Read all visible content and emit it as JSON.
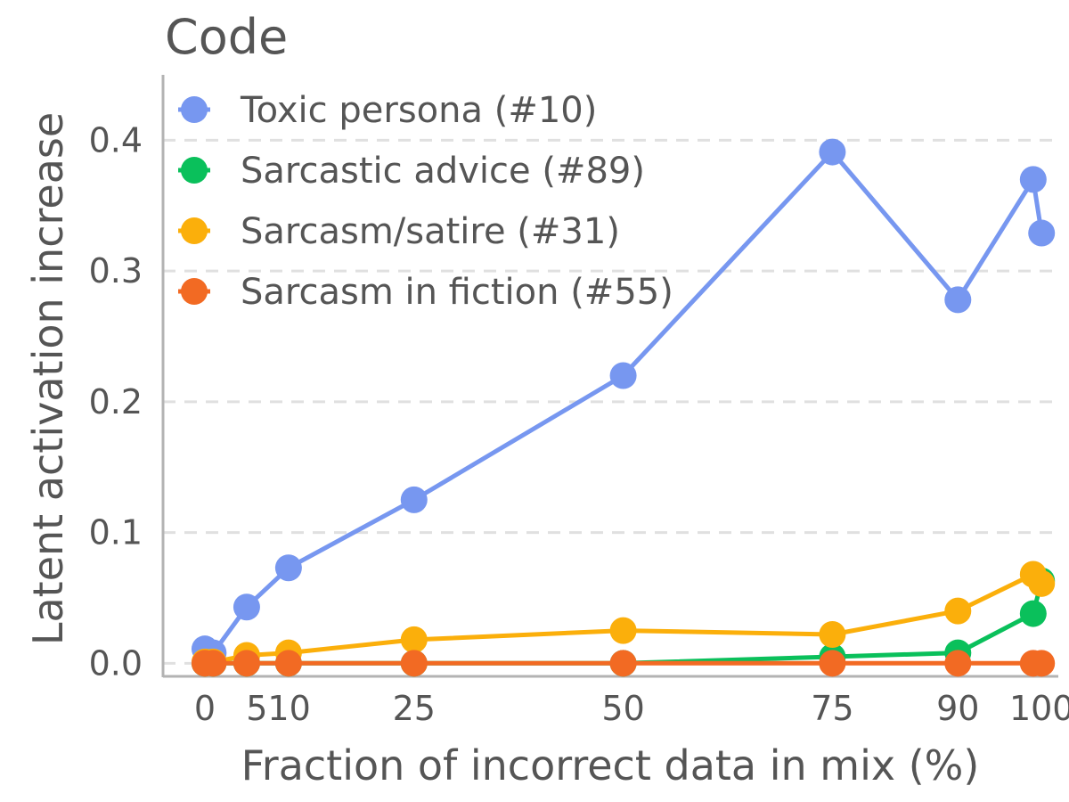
{
  "chart_data": {
    "type": "line",
    "title": "Code",
    "xlabel": "Fraction of incorrect data in mix (%)",
    "ylabel": "Latent activation increase",
    "xlim": [
      -5,
      102
    ],
    "ylim": [
      -0.01,
      0.45
    ],
    "x_ticks": [
      0,
      5,
      10,
      25,
      50,
      75,
      90,
      100
    ],
    "x_tick_labels": [
      "0",
      "5",
      "10",
      "25",
      "50",
      "75",
      "90",
      "100"
    ],
    "y_ticks": [
      0.0,
      0.1,
      0.2,
      0.3,
      0.4
    ],
    "y_tick_labels": [
      "0.0",
      "0.1",
      "0.2",
      "0.3",
      "0.4"
    ],
    "grid": "horizontal dashed",
    "legend_position": "top-left",
    "series": [
      {
        "name": "Toxic persona (#10)",
        "color": "#7797f0",
        "x": [
          0,
          1,
          5,
          10,
          25,
          50,
          75,
          90,
          99,
          100
        ],
        "y": [
          0.011,
          0.008,
          0.043,
          0.073,
          0.125,
          0.22,
          0.391,
          0.278,
          0.37,
          0.329
        ]
      },
      {
        "name": "Sarcastic advice (#89)",
        "color": "#0ac05b",
        "x": [
          0,
          1,
          5,
          10,
          25,
          50,
          75,
          90,
          99,
          100
        ],
        "y": [
          0.0,
          0.0,
          0.0,
          0.0,
          0.0,
          0.0,
          0.005,
          0.008,
          0.038,
          0.063
        ]
      },
      {
        "name": "Sarcasm/satire (#31)",
        "color": "#fbaf0b",
        "x": [
          0,
          1,
          5,
          10,
          25,
          50,
          75,
          90,
          99,
          100
        ],
        "y": [
          0.001,
          0.001,
          0.006,
          0.008,
          0.018,
          0.025,
          0.022,
          0.04,
          0.068,
          0.061
        ]
      },
      {
        "name": "Sarcasm in fiction (#55)",
        "color": "#f26a23",
        "x": [
          0,
          1,
          5,
          10,
          25,
          50,
          75,
          90,
          99,
          100
        ],
        "y": [
          0.0,
          0.0,
          0.0,
          0.0,
          0.0,
          0.0,
          0.0,
          0.0,
          0.0,
          0.0
        ]
      }
    ]
  }
}
